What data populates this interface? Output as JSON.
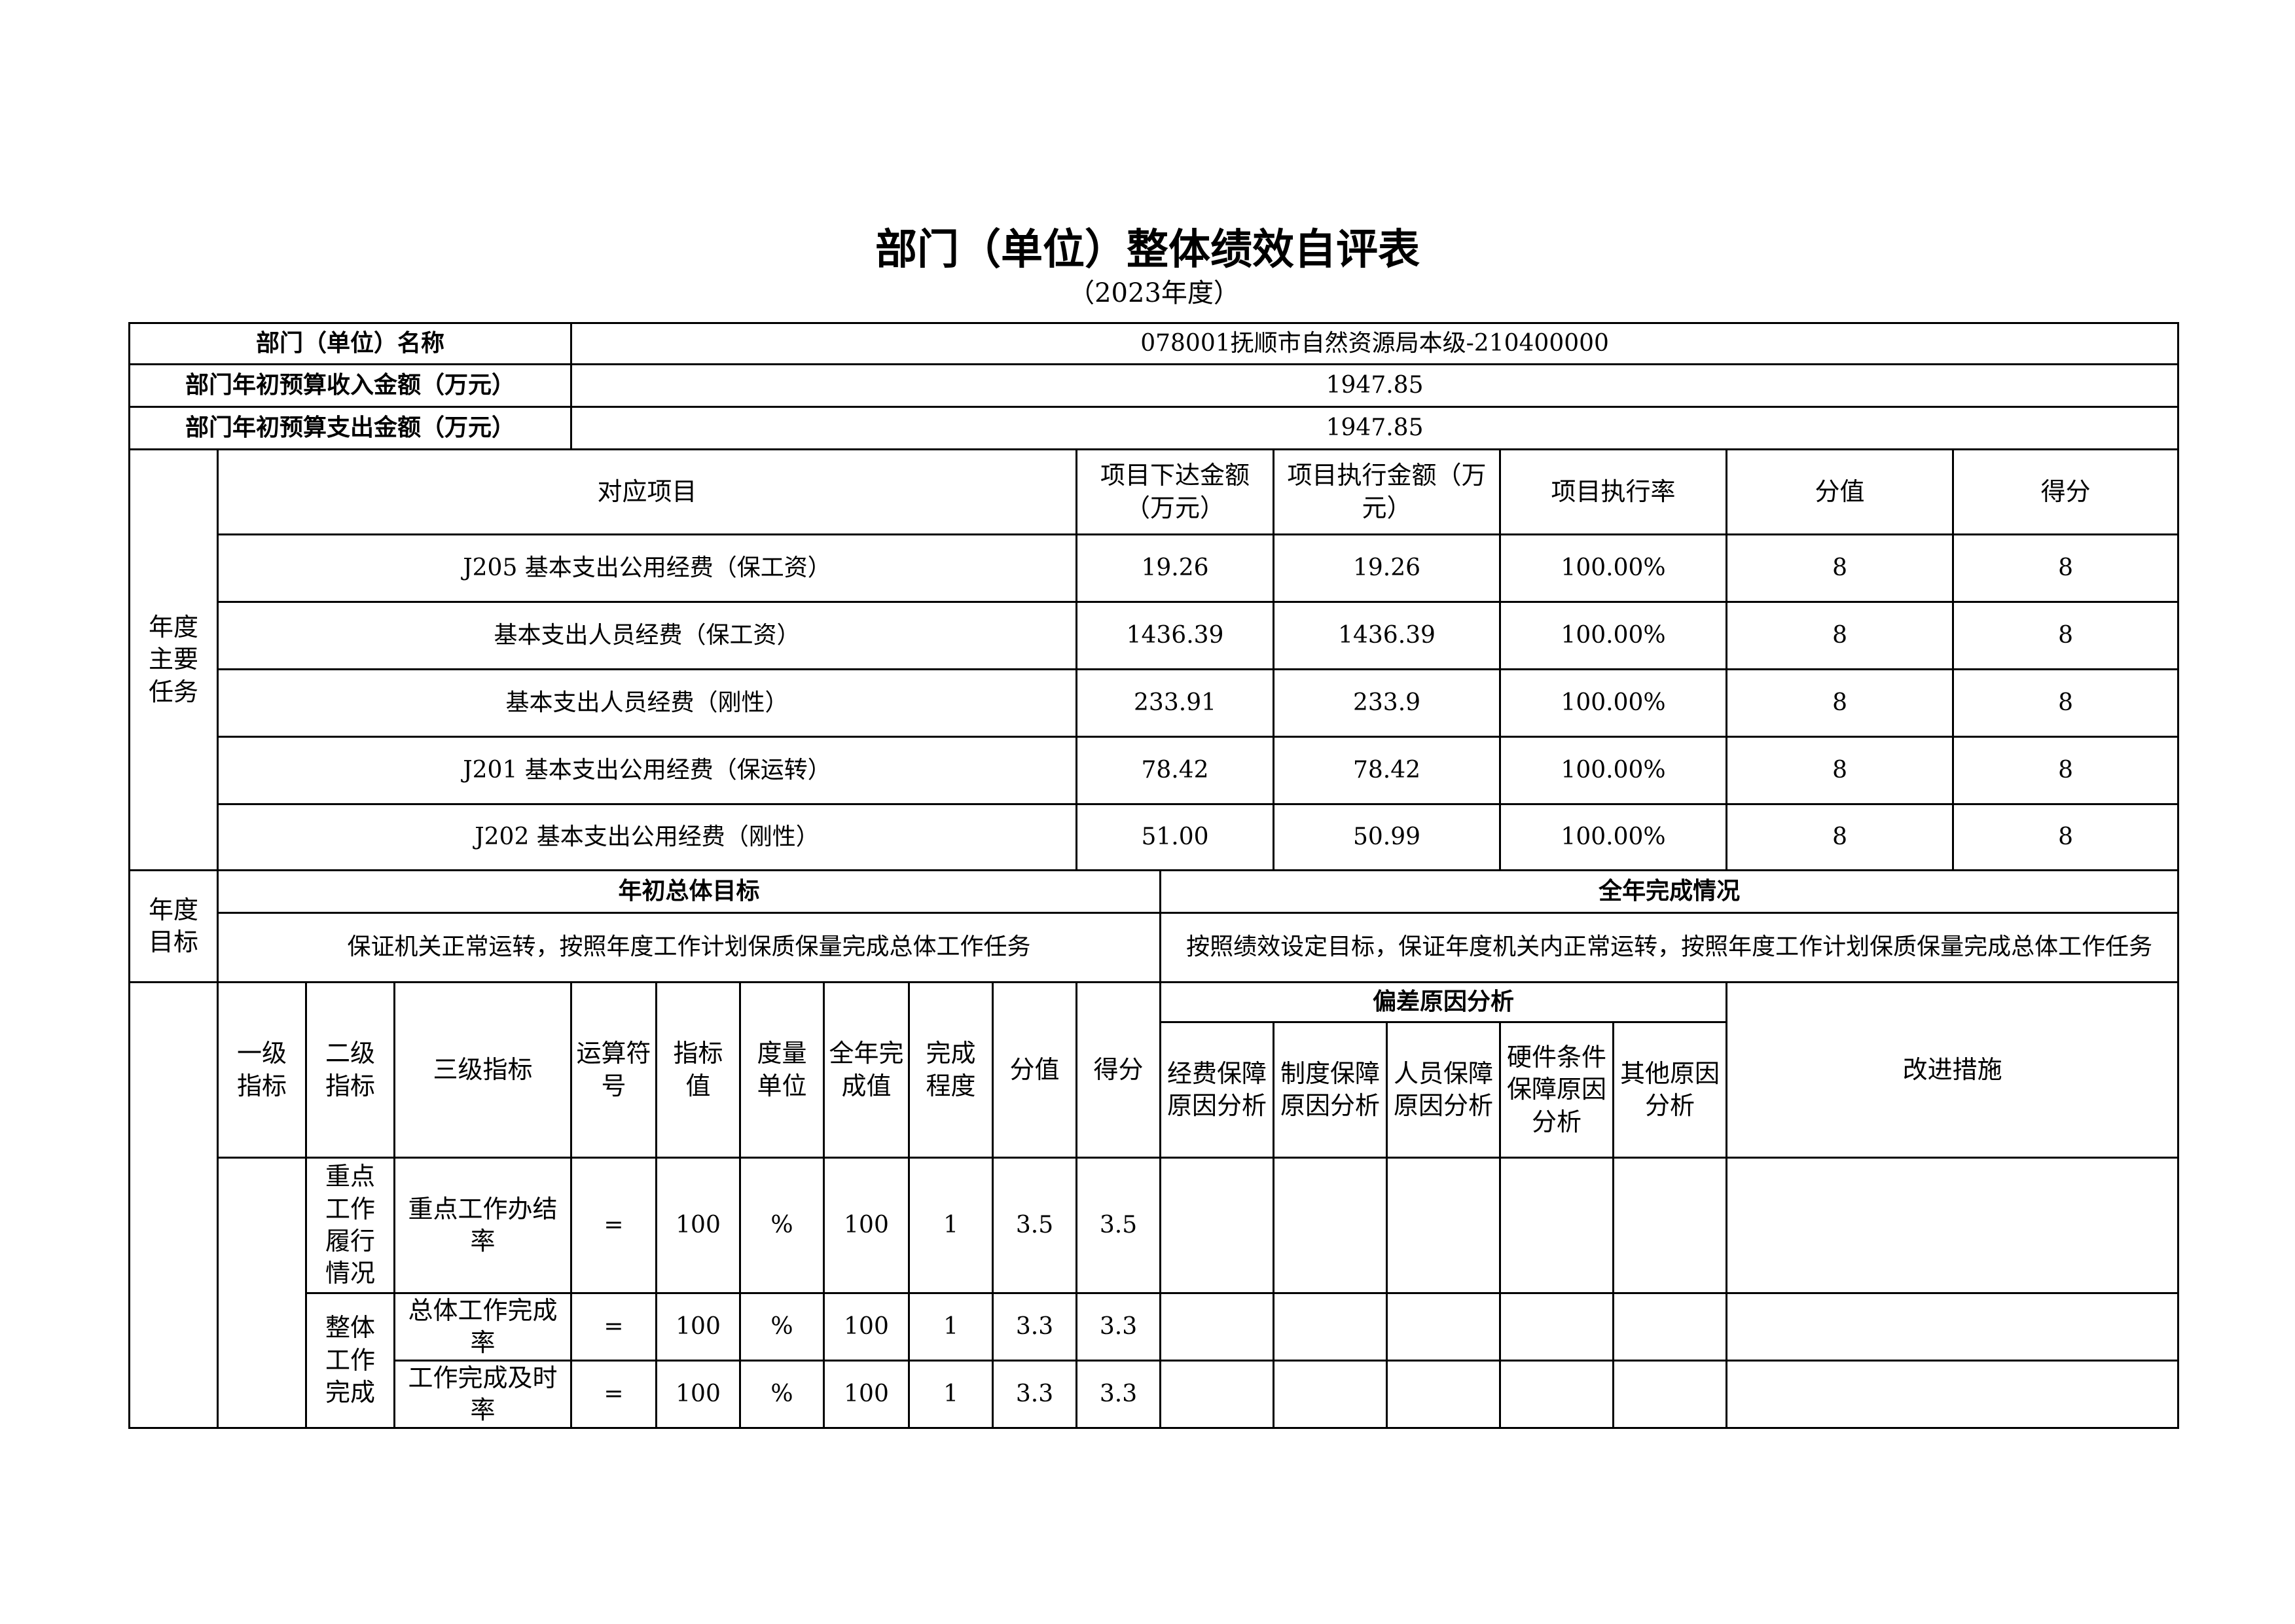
{
  "header": {
    "title": "部门（单位）整体绩效自评表",
    "subtitle": "（2023年度）"
  },
  "info": [
    {
      "label": "部门（单位）名称",
      "value": "078001抚顺市自然资源局本级-210400000"
    },
    {
      "label": "部门年初预算收入金额（万元）",
      "value": "1947.85"
    },
    {
      "label": "部门年初预算支出金额（万元）",
      "value": "1947.85"
    }
  ],
  "tasks": {
    "label": "年度主要任务",
    "columns": [
      "对应项目",
      "项目下达金额（万元）",
      "项目执行金额（万元）",
      "项目执行率",
      "分值",
      "得分"
    ],
    "rows": [
      [
        "J205 基本支出公用经费（保工资）",
        "19.26",
        "19.26",
        "100.00%",
        "8",
        "8"
      ],
      [
        "基本支出人员经费（保工资）",
        "1436.39",
        "1436.39",
        "100.00%",
        "8",
        "8"
      ],
      [
        "基本支出人员经费（刚性）",
        "233.91",
        "233.9",
        "100.00%",
        "8",
        "8"
      ],
      [
        "J201 基本支出公用经费（保运转）",
        "78.42",
        "78.42",
        "100.00%",
        "8",
        "8"
      ],
      [
        "J202 基本支出公用经费（刚性）",
        "51.00",
        "50.99",
        "100.00%",
        "8",
        "8"
      ]
    ]
  },
  "goals": {
    "label": "年度目标",
    "columns": [
      "年初总体目标",
      "全年完成情况"
    ],
    "values": [
      "保证机关正常运转，按照年度工作计划保质保量完成总体工作任务",
      "按照绩效设定目标，保证年度机关内正常运转，按照年度工作计划保质保量完成总体工作任务"
    ]
  },
  "indicators": {
    "columns": [
      "一级指标",
      "二级指标",
      "三级指标",
      "运算符号",
      "指标值",
      "度量单位",
      "全年完成值",
      "完成程度",
      "分值",
      "得分"
    ],
    "deviation": {
      "title": "偏差原因分析",
      "columns": [
        "经费保障原因分析",
        "制度保障原因分析",
        "人员保障原因分析",
        "硬件条件保障原因分析",
        "其他原因分析"
      ]
    },
    "improvement": "改进措施",
    "groups": [
      {
        "name": "重点工作履行情况",
        "rows": [
          [
            "重点工作办结率",
            "=",
            "100",
            "%",
            "100",
            "1",
            "3.5",
            "3.5"
          ]
        ]
      },
      {
        "name": "整体工作完成",
        "rows": [
          [
            "总体工作完成率",
            "=",
            "100",
            "%",
            "100",
            "1",
            "3.3",
            "3.3"
          ],
          [
            "工作完成及时率",
            "=",
            "100",
            "%",
            "100",
            "1",
            "3.3",
            "3.3"
          ]
        ]
      }
    ]
  }
}
